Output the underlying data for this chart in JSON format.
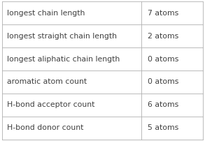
{
  "rows": [
    [
      "longest chain length",
      "7 atoms"
    ],
    [
      "longest straight chain length",
      "2 atoms"
    ],
    [
      "longest aliphatic chain length",
      "0 atoms"
    ],
    [
      "aromatic atom count",
      "0 atoms"
    ],
    [
      "H-bond acceptor count",
      "6 atoms"
    ],
    [
      "H-bond donor count",
      "5 atoms"
    ]
  ],
  "col_split": 0.695,
  "bg_color": "#ffffff",
  "border_color": "#b0b0b0",
  "text_color": "#404040",
  "font_size": 7.8
}
